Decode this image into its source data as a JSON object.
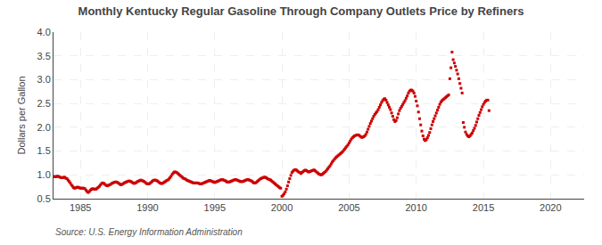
{
  "chart_data": {
    "type": "scatter",
    "title": "Monthly Kentucky Regular Gasoline Through Company Outlets Price by Refiners",
    "ylabel": "Dollars per Gallon",
    "source": "Source: U.S. Energy Information Administration",
    "color": "#CC0000",
    "marker": "square",
    "grid": true,
    "xlim": [
      1983.0,
      2022.5
    ],
    "ylim": [
      0.5,
      4.0
    ],
    "xticks": [
      1985,
      1990,
      1995,
      2000,
      2005,
      2010,
      2015,
      2020
    ],
    "yticks": [
      0.5,
      {
        "value": 1.0,
        "label": "1.0"
      },
      1.5,
      {
        "value": 2.0,
        "label": "2.0"
      },
      2.5,
      {
        "value": 3.0,
        "label": "3.0"
      },
      3.5,
      {
        "value": 4.0,
        "label": "4.0"
      }
    ],
    "x": [
      1983,
      1983.0833,
      1983.1667,
      1983.25,
      1983.3333,
      1983.4167,
      1983.5,
      1983.5833,
      1983.6667,
      1983.75,
      1983.8333,
      1983.9167,
      1984,
      1984.0833,
      1984.1667,
      1984.25,
      1984.3333,
      1984.4167,
      1984.5,
      1984.5833,
      1984.6667,
      1984.75,
      1984.8333,
      1984.9167,
      1985,
      1985.0833,
      1985.1667,
      1985.25,
      1985.3333,
      1985.4167,
      1985.5,
      1985.5833,
      1985.6667,
      1985.75,
      1985.8333,
      1985.9167,
      1986,
      1986.0833,
      1986.1667,
      1986.25,
      1986.3333,
      1986.4167,
      1986.5,
      1986.5833,
      1986.6667,
      1986.75,
      1986.8333,
      1986.9167,
      1987,
      1987.0833,
      1987.1667,
      1987.25,
      1987.3333,
      1987.4167,
      1987.5,
      1987.5833,
      1987.6667,
      1987.75,
      1987.8333,
      1987.9167,
      1988,
      1988.0833,
      1988.1667,
      1988.25,
      1988.3333,
      1988.4167,
      1988.5,
      1988.5833,
      1988.6667,
      1988.75,
      1988.8333,
      1988.9167,
      1989,
      1989.0833,
      1989.1667,
      1989.25,
      1989.3333,
      1989.4167,
      1989.5,
      1989.5833,
      1989.6667,
      1989.75,
      1989.8333,
      1989.9167,
      1990,
      1990.0833,
      1990.1667,
      1990.25,
      1990.3333,
      1990.4167,
      1990.5,
      1990.5833,
      1990.6667,
      1990.75,
      1990.8333,
      1990.9167,
      1991,
      1991.0833,
      1991.1667,
      1991.25,
      1991.3333,
      1991.4167,
      1991.5,
      1991.5833,
      1991.6667,
      1991.75,
      1991.8333,
      1991.9167,
      1992,
      1992.0833,
      1992.1667,
      1992.25,
      1992.3333,
      1992.4167,
      1992.5,
      1992.5833,
      1992.6667,
      1992.75,
      1992.8333,
      1992.9167,
      1993,
      1993.0833,
      1993.1667,
      1993.25,
      1993.3333,
      1993.4167,
      1993.5,
      1993.5833,
      1993.6667,
      1993.75,
      1993.8333,
      1993.9167,
      1994,
      1994.0833,
      1994.1667,
      1994.25,
      1994.3333,
      1994.4167,
      1994.5,
      1994.5833,
      1994.6667,
      1994.75,
      1994.8333,
      1994.9167,
      1995,
      1995.0833,
      1995.1667,
      1995.25,
      1995.3333,
      1995.4167,
      1995.5,
      1995.5833,
      1995.6667,
      1995.75,
      1995.8333,
      1995.9167,
      1996,
      1996.0833,
      1996.1667,
      1996.25,
      1996.3333,
      1996.4167,
      1996.5,
      1996.5833,
      1996.6667,
      1996.75,
      1996.8333,
      1996.9167,
      1997,
      1997.0833,
      1997.1667,
      1997.25,
      1997.3333,
      1997.4167,
      1997.5,
      1997.5833,
      1997.6667,
      1997.75,
      1997.8333,
      1997.9167,
      1998,
      1998.0833,
      1998.1667,
      1998.25,
      1998.3333,
      1998.4167,
      1998.5,
      1998.5833,
      1998.6667,
      1998.75,
      1998.8333,
      1998.9167,
      1999,
      1999.0833,
      1999.1667,
      1999.25,
      1999.3333,
      1999.4167,
      1999.5,
      1999.5833,
      1999.6667,
      1999.75,
      1999.8333,
      1999.9167,
      2000,
      2000.0833,
      2000.1667,
      2000.25,
      2000.3333,
      2000.4167,
      2000.5,
      2000.5833,
      2000.6667,
      2000.75,
      2000.8333,
      2000.9167,
      2001,
      2001.0833,
      2001.1667,
      2001.25,
      2001.3333,
      2001.4167,
      2001.5,
      2001.5833,
      2001.6667,
      2001.75,
      2001.8333,
      2001.9167,
      2002,
      2002.0833,
      2002.1667,
      2002.25,
      2002.3333,
      2002.4167,
      2002.5,
      2002.5833,
      2002.6667,
      2002.75,
      2002.8333,
      2002.9167,
      2003,
      2003.0833,
      2003.1667,
      2003.25,
      2003.3333,
      2003.4167,
      2003.5,
      2003.5833,
      2003.6667,
      2003.75,
      2003.8333,
      2003.9167,
      2004,
      2004.0833,
      2004.1667,
      2004.25,
      2004.3333,
      2004.4167,
      2004.5,
      2004.5833,
      2004.6667,
      2004.75,
      2004.8333,
      2004.9167,
      2005,
      2005.0833,
      2005.1667,
      2005.25,
      2005.3333,
      2005.4167,
      2005.5,
      2005.5833,
      2005.6667,
      2005.75,
      2005.8333,
      2005.9167,
      2006,
      2006.0833,
      2006.1667,
      2006.25,
      2006.3333,
      2006.4167,
      2006.5,
      2006.5833,
      2006.6667,
      2006.75,
      2006.8333,
      2006.9167,
      2007,
      2007.0833,
      2007.1667,
      2007.25,
      2007.3333,
      2007.4167,
      2007.5,
      2007.5833,
      2007.6667,
      2007.75,
      2007.8333,
      2007.9167,
      2008,
      2008.0833,
      2008.1667,
      2008.25,
      2008.3333,
      2008.4167,
      2008.5,
      2008.5833,
      2008.6667,
      2008.75,
      2008.8333,
      2008.9167,
      2009,
      2009.0833,
      2009.1667,
      2009.25,
      2009.3333,
      2009.4167,
      2009.5,
      2009.5833,
      2009.6667,
      2009.75,
      2009.8333,
      2009.9167,
      2010,
      2010.0833,
      2010.1667,
      2010.25,
      2010.3333,
      2010.4167,
      2010.5,
      2010.5833,
      2010.6667,
      2010.75,
      2010.8333,
      2010.9167,
      2011,
      2011.0833,
      2011.1667,
      2011.25,
      2011.3333,
      2011.4167,
      2011.5,
      2011.5833,
      2011.6667,
      2011.75,
      2011.8333,
      2011.9167,
      2012,
      2012.0833,
      2012.1667,
      2012.25,
      2012.3333,
      2012.4167,
      2012.5,
      2012.5833,
      2012.6667,
      2012.75,
      2012.8333,
      2012.9167,
      2013,
      2013.0833,
      2013.1667,
      2013.25,
      2013.3333,
      2013.4167,
      2013.5,
      2013.5833,
      2013.6667,
      2013.75,
      2013.8333,
      2013.9167,
      2014,
      2014.0833,
      2014.1667,
      2014.25,
      2014.3333,
      2014.4167,
      2014.5,
      2014.5833,
      2014.6667,
      2014.75,
      2014.8333,
      2014.9167,
      2015,
      2015.0833,
      2015.1667,
      2015.25,
      2015.3333,
      2015.4167
    ],
    "values": [
      0.97,
      0.96,
      0.96,
      0.97,
      0.97,
      0.96,
      0.95,
      0.94,
      0.94,
      0.95,
      0.95,
      0.93,
      0.92,
      0.89,
      0.86,
      0.83,
      0.79,
      0.76,
      0.73,
      0.72,
      0.73,
      0.74,
      0.74,
      0.73,
      0.72,
      0.72,
      0.72,
      0.72,
      0.71,
      0.68,
      0.65,
      0.63,
      0.65,
      0.68,
      0.7,
      0.71,
      0.7,
      0.7,
      0.7,
      0.72,
      0.74,
      0.76,
      0.79,
      0.82,
      0.83,
      0.82,
      0.8,
      0.78,
      0.77,
      0.78,
      0.79,
      0.8,
      0.82,
      0.83,
      0.84,
      0.85,
      0.85,
      0.84,
      0.83,
      0.81,
      0.79,
      0.8,
      0.81,
      0.83,
      0.84,
      0.85,
      0.86,
      0.87,
      0.87,
      0.86,
      0.85,
      0.83,
      0.82,
      0.83,
      0.84,
      0.86,
      0.87,
      0.88,
      0.89,
      0.88,
      0.87,
      0.86,
      0.84,
      0.82,
      0.81,
      0.81,
      0.82,
      0.84,
      0.86,
      0.88,
      0.89,
      0.89,
      0.88,
      0.87,
      0.85,
      0.83,
      0.82,
      0.82,
      0.83,
      0.85,
      0.86,
      0.88,
      0.89,
      0.91,
      0.94,
      0.97,
      1.01,
      1.04,
      1.06,
      1.06,
      1.05,
      1.03,
      1.01,
      0.99,
      0.97,
      0.95,
      0.93,
      0.92,
      0.91,
      0.89,
      0.88,
      0.87,
      0.86,
      0.85,
      0.84,
      0.83,
      0.83,
      0.83,
      0.83,
      0.83,
      0.82,
      0.81,
      0.81,
      0.82,
      0.83,
      0.84,
      0.85,
      0.86,
      0.87,
      0.88,
      0.88,
      0.87,
      0.86,
      0.85,
      0.84,
      0.85,
      0.86,
      0.87,
      0.88,
      0.89,
      0.9,
      0.9,
      0.89,
      0.88,
      0.87,
      0.85,
      0.85,
      0.85,
      0.86,
      0.87,
      0.88,
      0.89,
      0.9,
      0.9,
      0.89,
      0.88,
      0.87,
      0.86,
      0.86,
      0.86,
      0.87,
      0.88,
      0.89,
      0.9,
      0.9,
      0.89,
      0.88,
      0.87,
      0.85,
      0.83,
      0.83,
      0.84,
      0.86,
      0.88,
      0.9,
      0.92,
      0.93,
      0.94,
      0.95,
      0.95,
      0.94,
      0.92,
      0.91,
      0.9,
      0.89,
      0.87,
      0.85,
      0.83,
      0.81,
      0.79,
      0.77,
      0.75,
      0.73,
      0.72,
      0.55,
      0.57,
      0.6,
      0.64,
      0.7,
      0.77,
      0.85,
      0.92,
      0.99,
      1.05,
      1.08,
      1.1,
      1.11,
      1.1,
      1.08,
      1.06,
      1.05,
      1.03,
      1.05,
      1.07,
      1.09,
      1.1,
      1.09,
      1.07,
      1.06,
      1.07,
      1.08,
      1.09,
      1.1,
      1.1,
      1.08,
      1.06,
      1.04,
      1.02,
      1.01,
      1.0,
      1.01,
      1.03,
      1.05,
      1.07,
      1.1,
      1.13,
      1.16,
      1.19,
      1.23,
      1.27,
      1.3,
      1.33,
      1.36,
      1.38,
      1.4,
      1.42,
      1.44,
      1.46,
      1.48,
      1.51,
      1.54,
      1.57,
      1.6,
      1.63,
      1.67,
      1.71,
      1.75,
      1.78,
      1.8,
      1.82,
      1.83,
      1.84,
      1.84,
      1.83,
      1.81,
      1.79,
      1.79,
      1.8,
      1.82,
      1.85,
      1.9,
      1.96,
      2.02,
      2.08,
      2.13,
      2.18,
      2.23,
      2.27,
      2.3,
      2.33,
      2.37,
      2.42,
      2.47,
      2.52,
      2.56,
      2.59,
      2.6,
      2.57,
      2.52,
      2.47,
      2.42,
      2.37,
      2.3,
      2.23,
      2.16,
      2.12,
      2.14,
      2.2,
      2.28,
      2.35,
      2.4,
      2.44,
      2.48,
      2.52,
      2.56,
      2.61,
      2.66,
      2.72,
      2.76,
      2.78,
      2.78,
      2.76,
      2.72,
      2.65,
      2.55,
      2.45,
      2.32,
      2.18,
      2.05,
      1.92,
      1.82,
      1.75,
      1.72,
      1.74,
      1.78,
      1.83,
      1.89,
      1.97,
      2.05,
      2.12,
      2.18,
      2.24,
      2.3,
      2.36,
      2.42,
      2.48,
      2.53,
      2.56,
      2.58,
      2.6,
      2.62,
      2.64,
      2.66,
      2.68,
      3.02,
      3.25,
      3.58,
      3.42,
      3.35,
      3.28,
      3.2,
      3.12,
      3.02,
      2.92,
      2.82,
      2.72,
      2.1,
      2.0,
      1.9,
      1.85,
      1.82,
      1.8,
      1.82,
      1.85,
      1.88,
      1.93,
      1.98,
      2.04,
      2.11,
      2.18,
      2.25,
      2.31,
      2.37,
      2.43,
      2.48,
      2.52,
      2.55,
      2.57,
      2.57,
      2.35
    ]
  }
}
